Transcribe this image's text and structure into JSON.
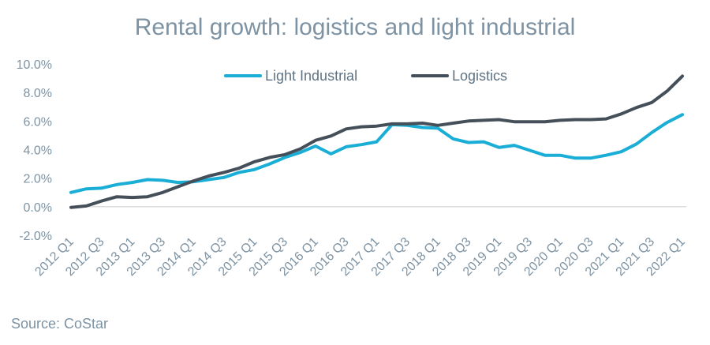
{
  "chart_data": {
    "type": "line",
    "title": "Rental growth: logistics and light industrial",
    "source": "Source: CoStar",
    "xlabel": "",
    "ylabel": "",
    "ylim": [
      -2.0,
      10.0
    ],
    "yticks": [
      "10.0%",
      "8.0%",
      "6.0%",
      "4.0%",
      "2.0%",
      "0.0%",
      "-2.0%"
    ],
    "ytick_values": [
      10,
      8,
      6,
      4,
      2,
      0,
      -2
    ],
    "grid": false,
    "legend_position": "top-center",
    "x": [
      "2012 Q1",
      "2012 Q2",
      "2012 Q3",
      "2012 Q4",
      "2013 Q1",
      "2013 Q2",
      "2013 Q3",
      "2013 Q4",
      "2014 Q1",
      "2014 Q2",
      "2014 Q3",
      "2014 Q4",
      "2015 Q1",
      "2015 Q2",
      "2015 Q3",
      "2015 Q4",
      "2016 Q1",
      "2016 Q2",
      "2016 Q3",
      "2016 Q4",
      "2017 Q1",
      "2017 Q2",
      "2017 Q3",
      "2017 Q4",
      "2018 Q1",
      "2018 Q2",
      "2018 Q3",
      "2018 Q4",
      "2019 Q1",
      "2019 Q2",
      "2019 Q3",
      "2019 Q4",
      "2020 Q1",
      "2020 Q2",
      "2020 Q3",
      "2020 Q4",
      "2021 Q1",
      "2021 Q2",
      "2021 Q3",
      "2021 Q4",
      "2022 Q1"
    ],
    "x_tick_labels": [
      "2012 Q1",
      "2012 Q3",
      "2013 Q1",
      "2013 Q3",
      "2014 Q1",
      "2014 Q3",
      "2015 Q1",
      "2015 Q3",
      "2016 Q1",
      "2016 Q3",
      "2017 Q1",
      "2017 Q3",
      "2018 Q1",
      "2018 Q3",
      "2019 Q1",
      "2019 Q3",
      "2020 Q1",
      "2020 Q3",
      "2021 Q1",
      "2021 Q3",
      "2022 Q1"
    ],
    "series": [
      {
        "name": "Light Industrial",
        "color": "#1aaed6",
        "values": [
          1.0,
          1.25,
          1.3,
          1.55,
          1.7,
          1.9,
          1.85,
          1.7,
          1.75,
          1.9,
          2.05,
          2.4,
          2.6,
          3.0,
          3.45,
          3.8,
          4.25,
          3.7,
          4.2,
          4.35,
          4.55,
          5.75,
          5.7,
          5.55,
          5.5,
          4.75,
          4.5,
          4.55,
          4.15,
          4.3,
          3.95,
          3.6,
          3.6,
          3.4,
          3.4,
          3.6,
          3.85,
          4.4,
          5.2,
          5.9,
          6.45
        ]
      },
      {
        "name": "Logistics",
        "color": "#454f59",
        "values": [
          -0.05,
          0.05,
          0.4,
          0.7,
          0.65,
          0.7,
          1.0,
          1.4,
          1.8,
          2.15,
          2.4,
          2.7,
          3.15,
          3.45,
          3.65,
          4.05,
          4.65,
          4.95,
          5.45,
          5.6,
          5.65,
          5.8,
          5.8,
          5.85,
          5.7,
          5.85,
          6.0,
          6.05,
          6.1,
          5.95,
          5.95,
          5.95,
          6.05,
          6.1,
          6.1,
          6.15,
          6.5,
          6.95,
          7.3,
          8.1,
          9.15
        ]
      }
    ]
  }
}
